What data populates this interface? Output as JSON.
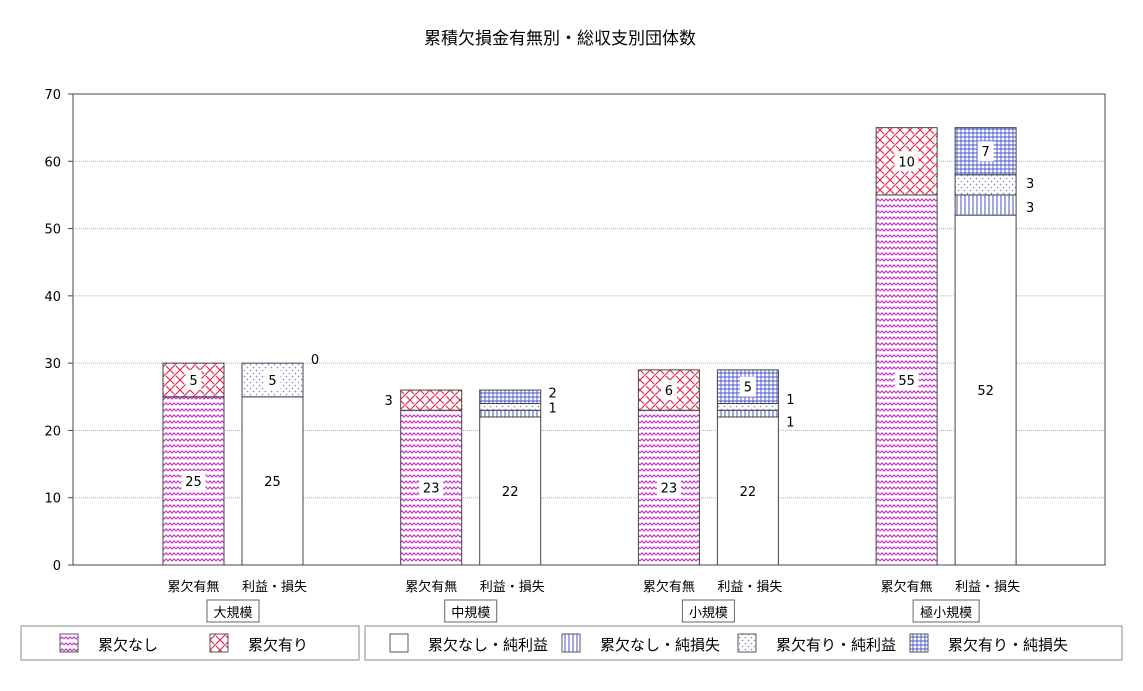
{
  "chart_data": {
    "type": "bar",
    "title": "累積欠損金有無別・総収支別団体数",
    "xlabel": "",
    "ylabel": "",
    "ylim": [
      0,
      70
    ],
    "yticks": [
      0,
      10,
      20,
      30,
      40,
      50,
      60,
      70
    ],
    "grid": true,
    "stacked": true,
    "legend_position": "bottom",
    "colors": {
      "magenta": "#cc33cc",
      "red": "#e0204a",
      "blue": "#4455cc",
      "dotblue": "#7a88cc",
      "border": "#444444",
      "grid": "#b0b0b0"
    },
    "bar_labels": [
      "累欠有無",
      "利益・損失"
    ],
    "groups": [
      {
        "name": "大規模",
        "deficit": {
          "none": 25,
          "present": 5
        },
        "profit": {
          "none_profit": 25,
          "none_loss": 0,
          "present_profit": 5,
          "present_loss": 0
        },
        "labels": {
          "left": [
            "25",
            "5"
          ],
          "right": [
            "25",
            "5",
            "0"
          ]
        }
      },
      {
        "name": "中規模",
        "deficit": {
          "none": 23,
          "present": 3
        },
        "profit": {
          "none_profit": 22,
          "none_loss": 1,
          "present_profit": 1,
          "present_loss": 2
        },
        "labels": {
          "left": [
            "23",
            "3"
          ],
          "right": [
            "22",
            "1",
            "2"
          ]
        }
      },
      {
        "name": "小規模",
        "deficit": {
          "none": 23,
          "present": 6
        },
        "profit": {
          "none_profit": 22,
          "none_loss": 1,
          "present_profit": 1,
          "present_loss": 5
        },
        "labels": {
          "left": [
            "23",
            "6"
          ],
          "right": [
            "22",
            "1",
            "1",
            "5"
          ]
        }
      },
      {
        "name": "極小規模",
        "deficit": {
          "none": 55,
          "present": 10
        },
        "profit": {
          "none_profit": 52,
          "none_loss": 3,
          "present_profit": 3,
          "present_loss": 7
        },
        "labels": {
          "left": [
            "55",
            "10"
          ],
          "right": [
            "52",
            "3",
            "3",
            "7"
          ]
        }
      }
    ],
    "legend": {
      "left": [
        "累欠なし",
        "累欠有り"
      ],
      "right": [
        "累欠なし・純利益",
        "累欠なし・純損失",
        "累欠有り・純利益",
        "累欠有り・純損失"
      ]
    }
  }
}
